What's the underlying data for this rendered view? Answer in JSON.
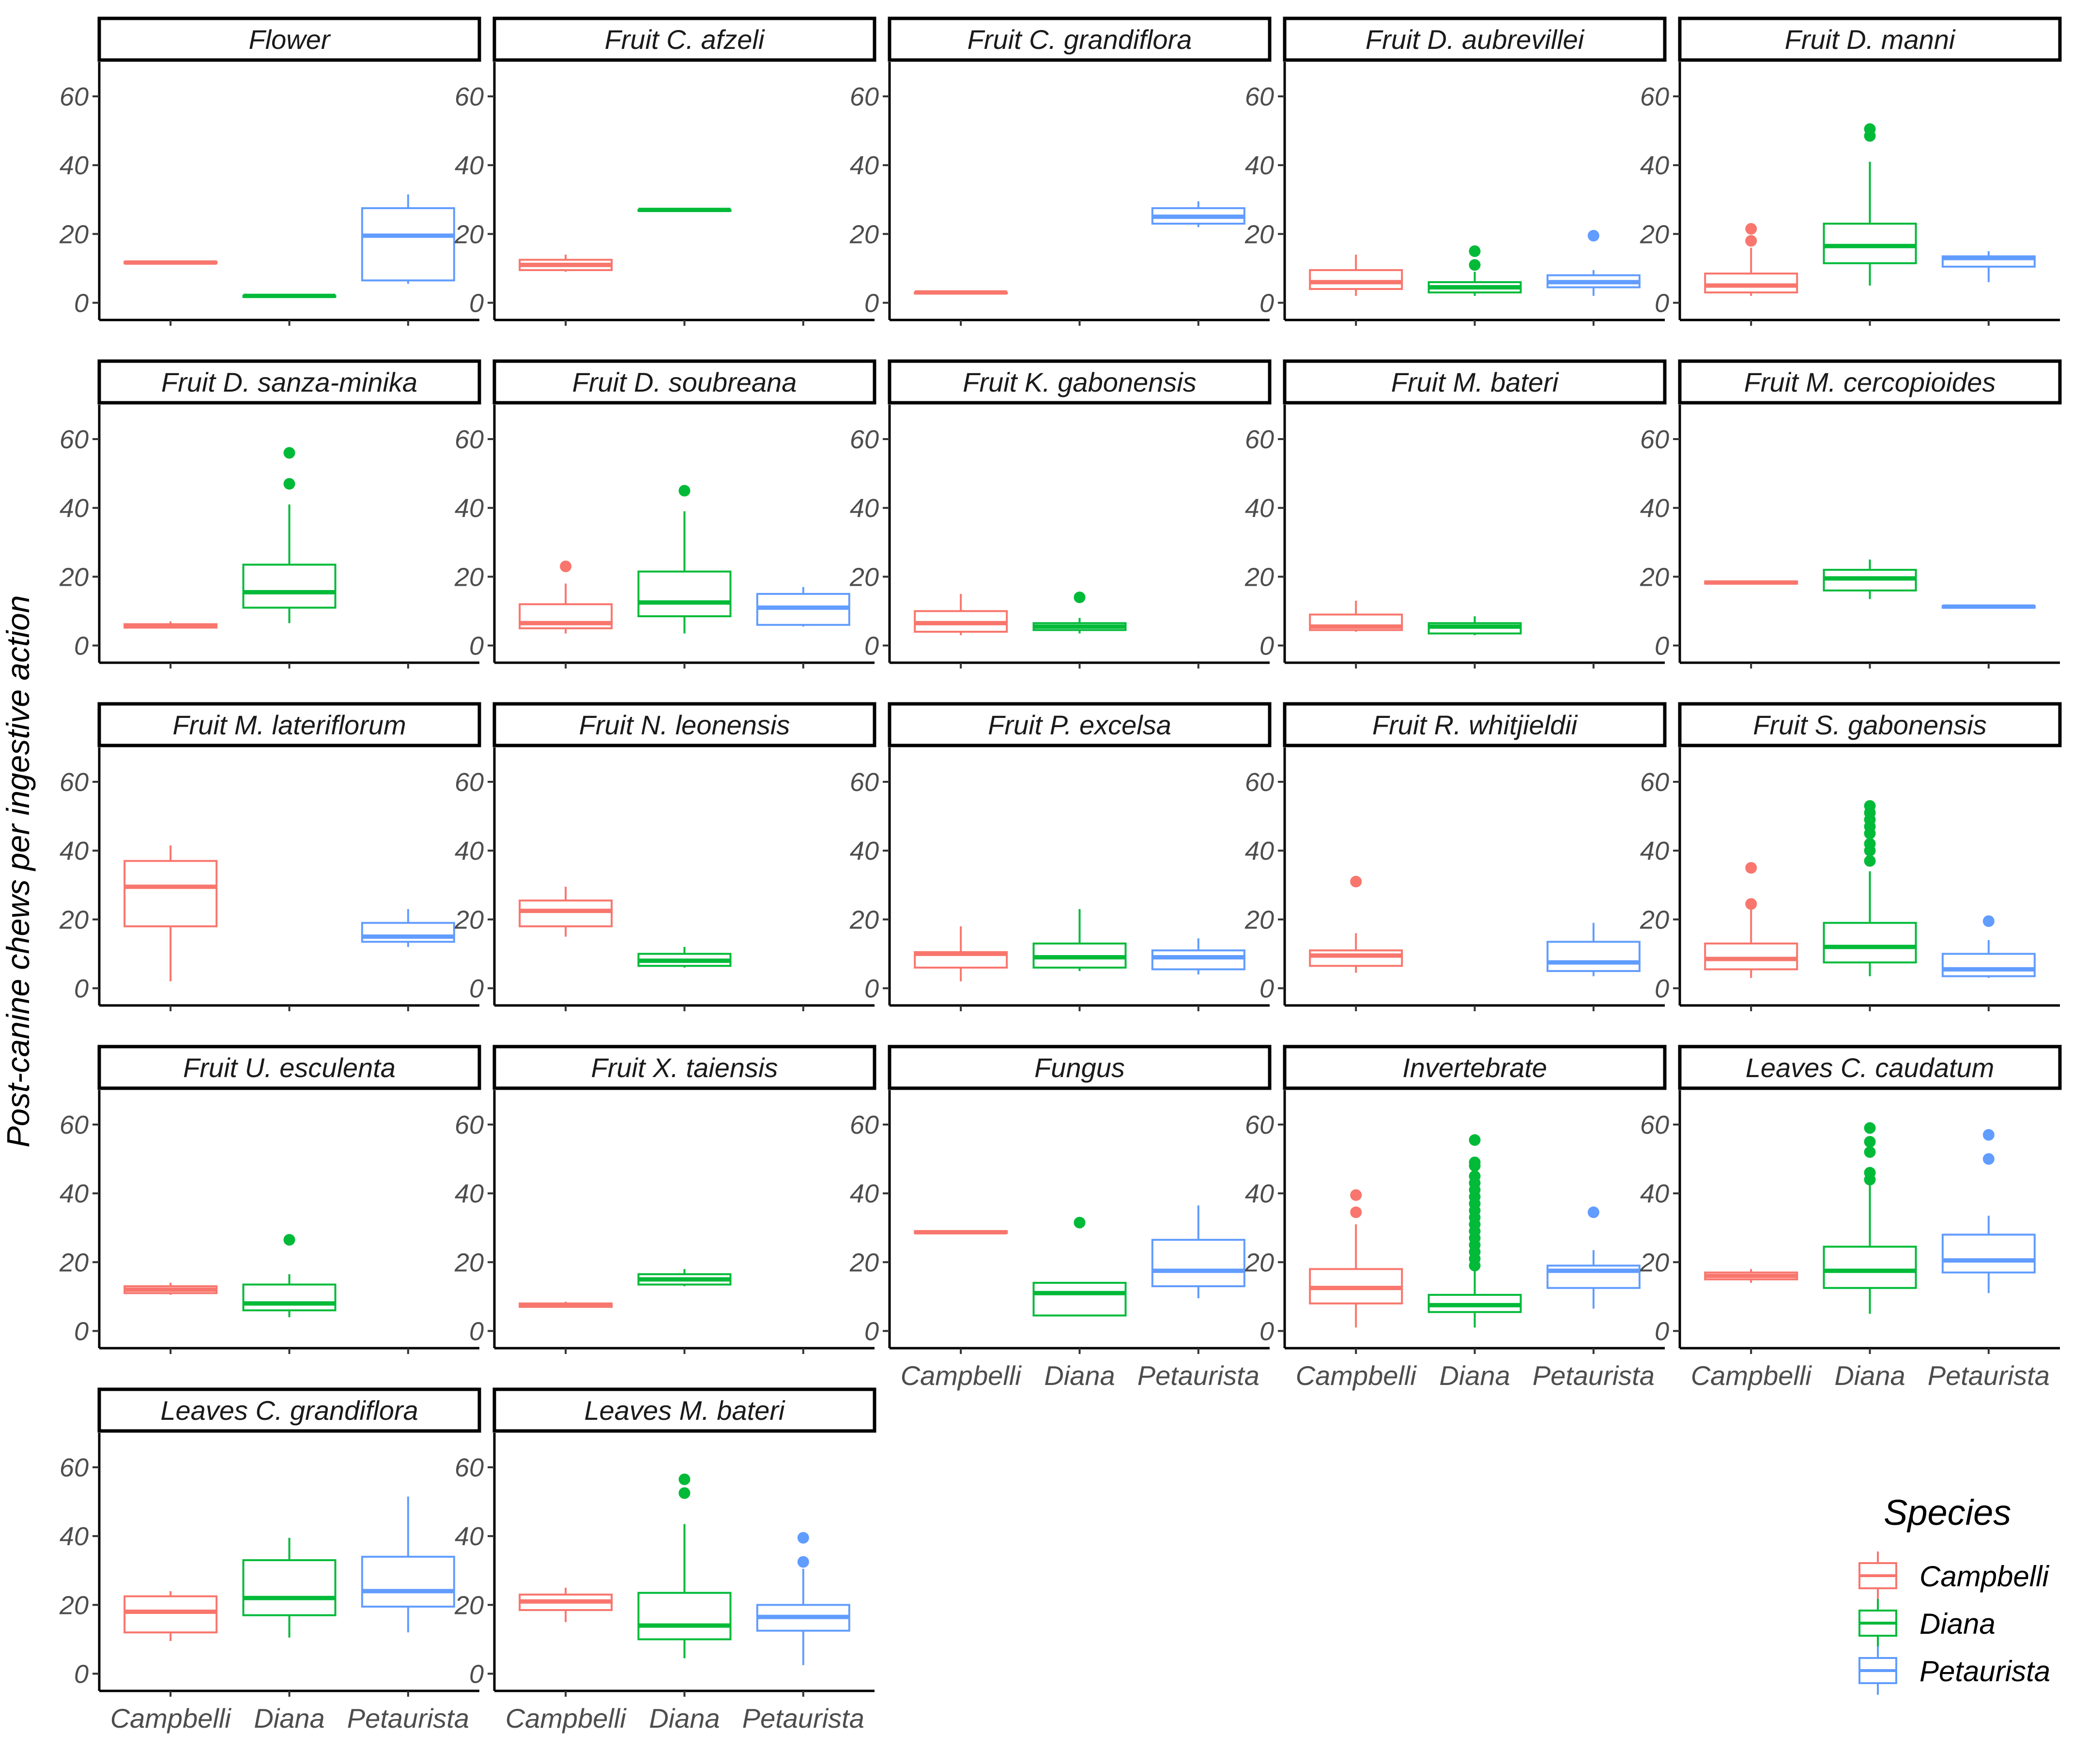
{
  "chart_data": {
    "type": "boxplot",
    "ylabel": "Post-canine chews per ingestive action",
    "xlabel": "",
    "ylim": [
      -5,
      70
    ],
    "yticks": [
      0,
      20,
      40,
      60
    ],
    "categories": [
      "Campbelli",
      "Diana",
      "Petaurista"
    ],
    "legend": {
      "title": "Species",
      "position": "right-bottom",
      "items": [
        "Campbelli",
        "Diana",
        "Petaurista"
      ]
    },
    "colors": {
      "Campbelli": "#F8766D",
      "Diana": "#00BA38",
      "Petaurista": "#619CFF"
    },
    "facets": [
      {
        "title": "Flower",
        "boxes": [
          {
            "series": "Campbelli",
            "min": 11.5,
            "q1": 11.5,
            "median": 11.7,
            "q3": 11.9,
            "max": 11.9,
            "outliers": []
          },
          {
            "series": "Diana",
            "min": 2,
            "q1": 2,
            "median": 2,
            "q3": 2,
            "max": 2,
            "outliers": []
          },
          {
            "series": "Petaurista",
            "min": 5.5,
            "q1": 6.5,
            "median": 19.5,
            "q3": 27.5,
            "max": 31.5,
            "outliers": []
          }
        ]
      },
      {
        "title": "Fruit C. afzeli",
        "boxes": [
          {
            "series": "Campbelli",
            "min": 9,
            "q1": 9.5,
            "median": 11,
            "q3": 12.5,
            "max": 14,
            "outliers": []
          },
          {
            "series": "Diana",
            "min": 27,
            "q1": 27,
            "median": 27,
            "q3": 27,
            "max": 27,
            "outliers": []
          }
        ]
      },
      {
        "title": "Fruit C. grandiflora",
        "boxes": [
          {
            "series": "Campbelli",
            "min": 3,
            "q1": 3,
            "median": 3,
            "q3": 3,
            "max": 3,
            "outliers": []
          },
          {
            "series": "Petaurista",
            "min": 22,
            "q1": 23,
            "median": 25,
            "q3": 27.5,
            "max": 29.5,
            "outliers": []
          }
        ]
      },
      {
        "title": "Fruit D. aubrevillei",
        "boxes": [
          {
            "series": "Campbelli",
            "min": 2,
            "q1": 4,
            "median": 6,
            "q3": 9.5,
            "max": 14,
            "outliers": []
          },
          {
            "series": "Diana",
            "min": 2,
            "q1": 3,
            "median": 4.5,
            "q3": 6,
            "max": 9,
            "outliers": [
              11,
              15
            ]
          },
          {
            "series": "Petaurista",
            "min": 2,
            "q1": 4.5,
            "median": 6,
            "q3": 8,
            "max": 9.5,
            "outliers": [
              19.5
            ]
          }
        ]
      },
      {
        "title": "Fruit D. manni",
        "boxes": [
          {
            "series": "Campbelli",
            "min": 2,
            "q1": 3,
            "median": 5,
            "q3": 8.5,
            "max": 16,
            "outliers": [
              18,
              21.5
            ]
          },
          {
            "series": "Diana",
            "min": 5,
            "q1": 11.5,
            "median": 16.5,
            "q3": 23,
            "max": 41,
            "outliers": [
              48.5,
              50.5
            ]
          },
          {
            "series": "Petaurista",
            "min": 6,
            "q1": 10.5,
            "median": 13,
            "q3": 13.5,
            "max": 15,
            "outliers": []
          }
        ]
      },
      {
        "title": "Fruit D. sanza-minika",
        "boxes": [
          {
            "series": "Campbelli",
            "min": 5,
            "q1": 5.2,
            "median": 5.6,
            "q3": 6.2,
            "max": 7,
            "outliers": []
          },
          {
            "series": "Diana",
            "min": 6.5,
            "q1": 11,
            "median": 15.5,
            "q3": 23.5,
            "max": 41,
            "outliers": [
              47,
              56
            ]
          }
        ]
      },
      {
        "title": "Fruit D. soubreana",
        "boxes": [
          {
            "series": "Campbelli",
            "min": 3.5,
            "q1": 5,
            "median": 6.5,
            "q3": 12,
            "max": 18,
            "outliers": [
              23
            ]
          },
          {
            "series": "Diana",
            "min": 3.5,
            "q1": 8.5,
            "median": 12.5,
            "q3": 21.5,
            "max": 39,
            "outliers": [
              45
            ]
          },
          {
            "series": "Petaurista",
            "min": 5.5,
            "q1": 6,
            "median": 11,
            "q3": 15,
            "max": 17,
            "outliers": []
          }
        ]
      },
      {
        "title": "Fruit K. gabonensis",
        "boxes": [
          {
            "series": "Campbelli",
            "min": 3,
            "q1": 4,
            "median": 6.5,
            "q3": 10,
            "max": 15,
            "outliers": []
          },
          {
            "series": "Diana",
            "min": 3.5,
            "q1": 4.5,
            "median": 5.5,
            "q3": 6.5,
            "max": 8,
            "outliers": [
              14
            ]
          }
        ]
      },
      {
        "title": "Fruit M. bateri",
        "boxes": [
          {
            "series": "Campbelli",
            "min": 4,
            "q1": 4.5,
            "median": 5.5,
            "q3": 9,
            "max": 13,
            "outliers": []
          },
          {
            "series": "Diana",
            "min": 3,
            "q1": 3.5,
            "median": 5.5,
            "q3": 6.5,
            "max": 8.5,
            "outliers": []
          }
        ]
      },
      {
        "title": "Fruit M. cercopioides",
        "boxes": [
          {
            "series": "Campbelli",
            "min": 18,
            "q1": 18,
            "median": 18.3,
            "q3": 18.6,
            "max": 18.6,
            "outliers": []
          },
          {
            "series": "Diana",
            "min": 13.5,
            "q1": 16,
            "median": 19.5,
            "q3": 22,
            "max": 25,
            "outliers": []
          },
          {
            "series": "Petaurista",
            "min": 11,
            "q1": 11,
            "median": 11.3,
            "q3": 11.5,
            "max": 11.5,
            "outliers": []
          }
        ]
      },
      {
        "title": "Fruit M. lateriflorum",
        "boxes": [
          {
            "series": "Campbelli",
            "min": 2,
            "q1": 18,
            "median": 29.5,
            "q3": 37,
            "max": 41.5,
            "outliers": []
          },
          {
            "series": "Petaurista",
            "min": 12,
            "q1": 13.5,
            "median": 15,
            "q3": 19,
            "max": 23,
            "outliers": []
          }
        ]
      },
      {
        "title": "Fruit N. leonensis",
        "boxes": [
          {
            "series": "Campbelli",
            "min": 15,
            "q1": 18,
            "median": 22.5,
            "q3": 25.5,
            "max": 29.5,
            "outliers": []
          },
          {
            "series": "Diana",
            "min": 6,
            "q1": 6.5,
            "median": 8,
            "q3": 10,
            "max": 12,
            "outliers": []
          }
        ]
      },
      {
        "title": "Fruit P. excelsa",
        "boxes": [
          {
            "series": "Campbelli",
            "min": 2,
            "q1": 6,
            "median": 10,
            "q3": 10.5,
            "max": 18,
            "outliers": []
          },
          {
            "series": "Diana",
            "min": 5,
            "q1": 6,
            "median": 9,
            "q3": 13,
            "max": 23,
            "outliers": []
          },
          {
            "series": "Petaurista",
            "min": 4,
            "q1": 5.5,
            "median": 9,
            "q3": 11,
            "max": 14.5,
            "outliers": []
          }
        ]
      },
      {
        "title": "Fruit R. whitjieldii",
        "boxes": [
          {
            "series": "Campbelli",
            "min": 4.5,
            "q1": 6.5,
            "median": 9.5,
            "q3": 11,
            "max": 16,
            "outliers": [
              31
            ]
          },
          {
            "series": "Petaurista",
            "min": 3.5,
            "q1": 5,
            "median": 7.5,
            "q3": 13.5,
            "max": 19,
            "outliers": []
          }
        ]
      },
      {
        "title": "Fruit S. gabonensis",
        "boxes": [
          {
            "series": "Campbelli",
            "min": 3,
            "q1": 5.5,
            "median": 8.5,
            "q3": 13,
            "max": 23.5,
            "outliers": [
              24.5,
              35
            ]
          },
          {
            "series": "Diana",
            "min": 3.5,
            "q1": 7.5,
            "median": 12,
            "q3": 19,
            "max": 34,
            "outliers": [
              37,
              40,
              42,
              45,
              47,
              49,
              51,
              53
            ]
          },
          {
            "series": "Petaurista",
            "min": 3,
            "q1": 3.5,
            "median": 5.5,
            "q3": 10,
            "max": 14,
            "outliers": [
              19.5
            ]
          }
        ]
      },
      {
        "title": "Fruit U. esculenta",
        "boxes": [
          {
            "series": "Campbelli",
            "min": 10.5,
            "q1": 11,
            "median": 12,
            "q3": 13,
            "max": 14,
            "outliers": []
          },
          {
            "series": "Diana",
            "min": 4,
            "q1": 6,
            "median": 8,
            "q3": 13.5,
            "max": 16.5,
            "outliers": [
              26.5
            ]
          }
        ]
      },
      {
        "title": "Fruit X. taiensis",
        "boxes": [
          {
            "series": "Campbelli",
            "min": 7,
            "q1": 7,
            "median": 7.5,
            "q3": 8,
            "max": 8.5,
            "outliers": []
          },
          {
            "series": "Diana",
            "min": 13,
            "q1": 13.5,
            "median": 15,
            "q3": 16.5,
            "max": 18,
            "outliers": []
          }
        ]
      },
      {
        "title": "Fungus",
        "boxes": [
          {
            "series": "Campbelli",
            "min": 28.5,
            "q1": 28.5,
            "median": 28.7,
            "q3": 29,
            "max": 29,
            "outliers": []
          },
          {
            "series": "Diana",
            "min": 4.5,
            "q1": 4.5,
            "median": 11,
            "q3": 14,
            "max": 14,
            "outliers": [
              31.5
            ]
          },
          {
            "series": "Petaurista",
            "min": 9.5,
            "q1": 13,
            "median": 17.5,
            "q3": 26.5,
            "max": 36.5,
            "outliers": []
          }
        ]
      },
      {
        "title": "Invertebrate",
        "boxes": [
          {
            "series": "Campbelli",
            "min": 1,
            "q1": 8,
            "median": 12.5,
            "q3": 18,
            "max": 31,
            "outliers": [
              34.5,
              39.5
            ]
          },
          {
            "series": "Diana",
            "min": 1,
            "q1": 5.5,
            "median": 7.5,
            "q3": 10.5,
            "max": 17.5,
            "outliers": [
              19,
              21,
              23,
              25,
              27,
              29,
              31,
              33,
              35,
              37,
              39,
              41,
              43,
              45,
              48,
              49,
              55.5
            ]
          },
          {
            "series": "Petaurista",
            "min": 6.5,
            "q1": 12.5,
            "median": 17.5,
            "q3": 19,
            "max": 23.5,
            "outliers": [
              34.5
            ]
          }
        ]
      },
      {
        "title": "Leaves C. caudatum",
        "boxes": [
          {
            "series": "Campbelli",
            "min": 14,
            "q1": 15,
            "median": 16,
            "q3": 17,
            "max": 18,
            "outliers": []
          },
          {
            "series": "Diana",
            "min": 5,
            "q1": 12.5,
            "median": 17.5,
            "q3": 24.5,
            "max": 42.5,
            "outliers": [
              44,
              46,
              52,
              55,
              59
            ]
          },
          {
            "series": "Petaurista",
            "min": 11,
            "q1": 17,
            "median": 20.5,
            "q3": 28,
            "max": 33.5,
            "outliers": [
              50,
              57
            ]
          }
        ]
      },
      {
        "title": "Leaves C. grandiflora",
        "boxes": [
          {
            "series": "Campbelli",
            "min": 9.5,
            "q1": 12,
            "median": 18,
            "q3": 22.5,
            "max": 24,
            "outliers": []
          },
          {
            "series": "Diana",
            "min": 10.5,
            "q1": 17,
            "median": 22,
            "q3": 33,
            "max": 39.5,
            "outliers": []
          },
          {
            "series": "Petaurista",
            "min": 12,
            "q1": 19.5,
            "median": 24,
            "q3": 34,
            "max": 51.5,
            "outliers": []
          }
        ]
      },
      {
        "title": "Leaves M. bateri",
        "boxes": [
          {
            "series": "Campbelli",
            "min": 15,
            "q1": 18.5,
            "median": 21,
            "q3": 23,
            "max": 25,
            "outliers": []
          },
          {
            "series": "Diana",
            "min": 4.5,
            "q1": 10,
            "median": 14,
            "q3": 23.5,
            "max": 43.5,
            "outliers": [
              52.5,
              56.5
            ]
          },
          {
            "series": "Petaurista",
            "min": 2.5,
            "q1": 12.5,
            "median": 16.5,
            "q3": 20,
            "max": 30.5,
            "outliers": [
              32.5,
              39.5
            ]
          }
        ]
      }
    ]
  }
}
